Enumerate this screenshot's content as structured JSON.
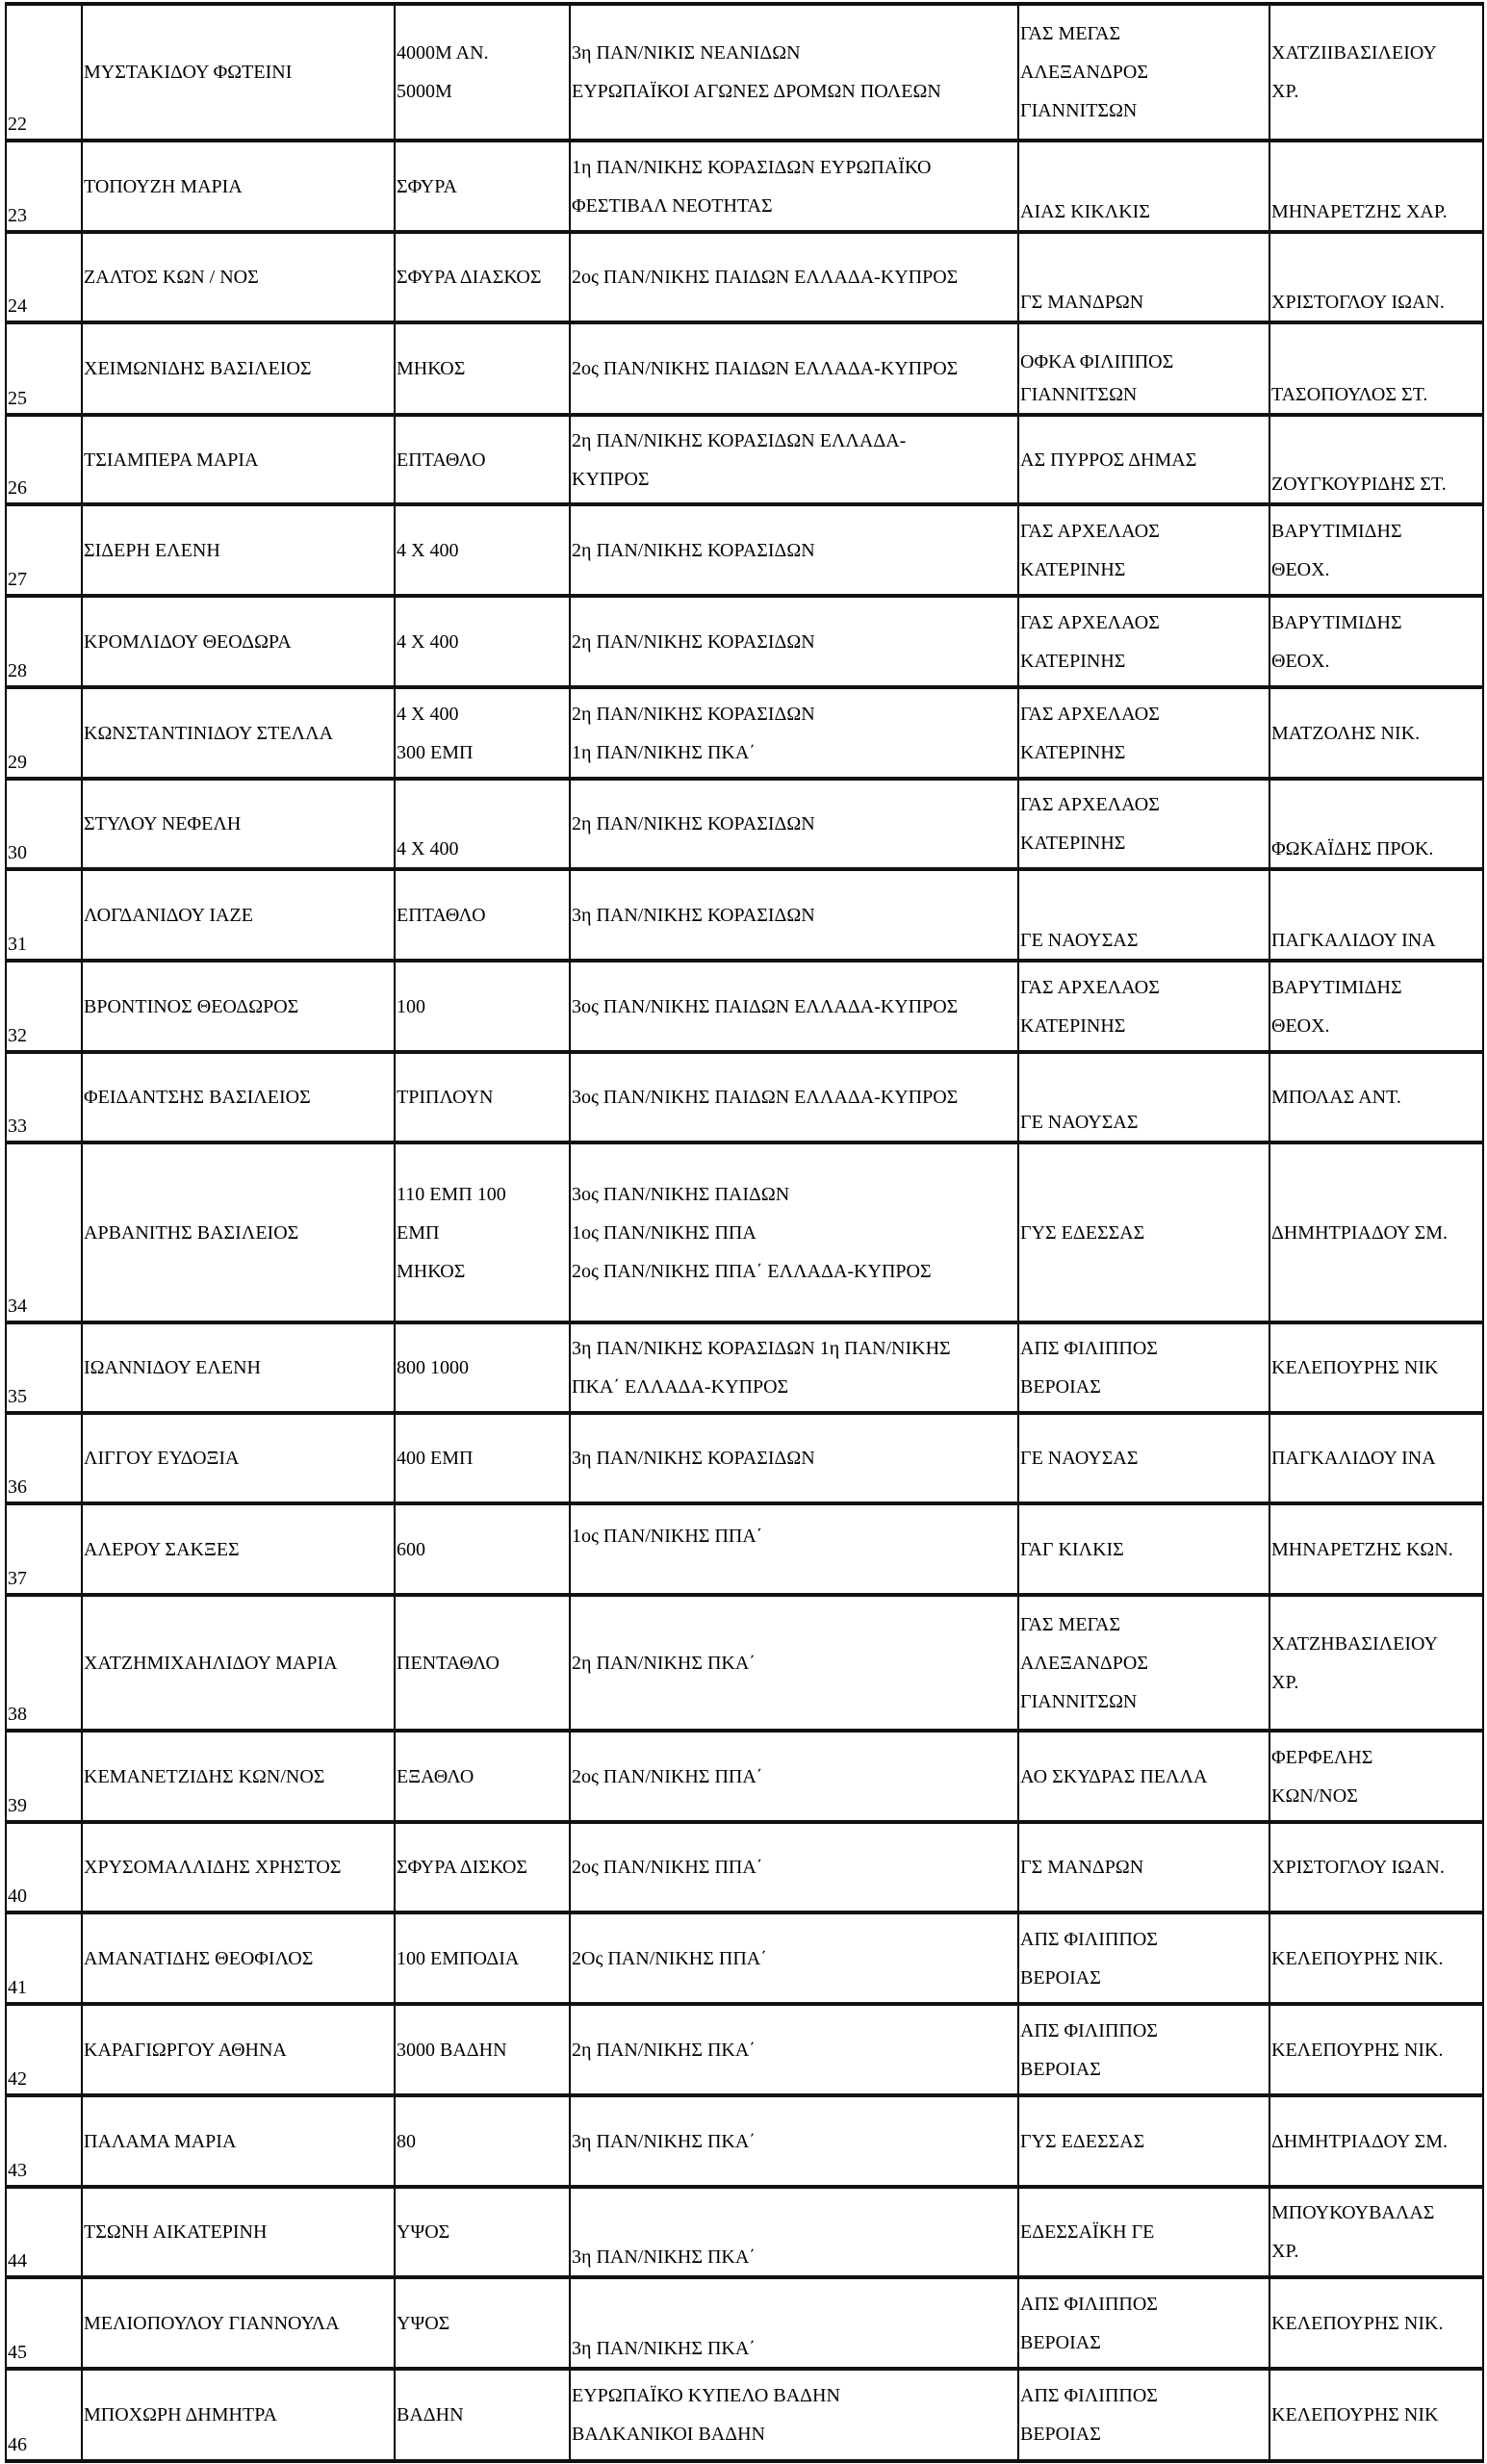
{
  "rows": [
    {
      "num": "22",
      "name": "ΜΥΣΤΑΚΙΔΟΥ  ΦΩΤΕΙΝΙ",
      "event": "4000Μ ΑΝ.\n5000Μ",
      "result": "3η ΠΑΝ/ΝΙΚΙΣ ΝΕΑΝΙΔΩΝ\nΕΥΡΩΠΑΪΚΟΙ ΑΓΩΝΕΣ ΔΡΟΜΩΝ ΠΟΛΕΩΝ",
      "club": "ΓΑΣ ΜΕΓΑΣ\nΑΛΕΞΑΝΔΡΟΣ\nΓΙΑΝΝΙΤΣΩΝ",
      "coach": "ΧΑΤΖΙΙΒΑΣΙΛΕΙΟΥ\nΧΡ."
    },
    {
      "num": "23",
      "name": "ΤΟΠΟΥΖΗ ΜΑΡΙΑ",
      "event": "ΣΦΥΡΑ",
      "result": "1η ΠΑΝ/ΝΙΚΗΣ ΚΟΡΑΣΙΔΩΝ ΕΥΡΩΠΑΪΚΟ\nΦΕΣΤΙΒΑΛ ΝΕΟΤΗΤΑΣ",
      "club": "ΑΙΑΣ ΚΙΚΛΚΙΣ",
      "coach": "ΜΗΝΑΡΕΤΖΗΣ ΧΑΡ."
    },
    {
      "num": "24",
      "name": "ΖΑΛΤΟΣ ΚΩΝ / ΝΟΣ",
      "event": "ΣΦΥΡΑ ΔΙΑΣΚΟΣ",
      "result": "2ος ΠΑΝ/ΝΙΚΗΣ ΠΑΙΔΩΝ ΕΛΛΑΔΑ-ΚΥΠΡΟΣ",
      "club": "ΓΣ  ΜΑΝΔΡΩΝ",
      "coach": "ΧΡΙΣΤΟΓΛΟΥ ΙΩΑΝ."
    },
    {
      "num": "25",
      "name": "ΧΕΙΜΩΝΙΔΗΣ ΒΑΣΙΛΕΙΟΣ",
      "event": "ΜΗΚΟΣ",
      "result": "2ος ΠΑΝ/ΝΙΚΗΣ ΠΑΙΔΩΝ ΕΛΛΑΔΑ-ΚΥΠΡΟΣ",
      "club": "ΟΦΚΑ ΦΙΛΙΠΠΟΣ\nΓΙΑΝΝΙΤΣΩΝ",
      "coach": "ΤΑΣΟΠΟΥΛΟΣ ΣΤ."
    },
    {
      "num": "26",
      "name": "ΤΣΙΑΜΠΕΡΑ ΜΑΡΙΑ",
      "event": "ΕΠΤΑΘΛΟ",
      "result": "2η  ΠΑΝ/ΝΙΚΗΣ ΚΟΡΑΣΙΔΩΝ ΕΛΛΑΔΑ-\nΚΥΠΡΟΣ",
      "club": "ΑΣ ΠΥΡΡΟΣ ΔΗΜΑΣ",
      "coach": "ΖΟΥΓΚΟΥΡΙΔΗΣ ΣΤ."
    },
    {
      "num": "27",
      "name": "ΣΙΔΕΡΗ ΕΛΕΝΗ",
      "event": "4 Χ 400",
      "result": "2η  ΠΑΝ/ΝΙΚΗΣ ΚΟΡΑΣΙΔΩΝ",
      "club": "ΓΑΣ ΑΡΧΕΛΑΟΣ\nΚΑΤΕΡΙΝΗΣ",
      "coach": " ΒΑΡΥΤΙΜΙΔΗΣ\nΘΕΟΧ."
    },
    {
      "num": "28",
      "name": "ΚΡΟΜΛΙΔΟΥ  ΘΕΟΔΩΡΑ",
      "event": "4 Χ 400",
      "result": "2η  ΠΑΝ/ΝΙΚΗΣ ΚΟΡΑΣΙΔΩΝ",
      "club": "ΓΑΣ ΑΡΧΕΛΑΟΣ\nΚΑΤΕΡΙΝΗΣ",
      "coach": " ΒΑΡΥΤΙΜΙΔΗΣ\nΘΕΟΧ."
    },
    {
      "num": "29",
      "name": "ΚΩΝΣΤΑΝΤΙΝΙΔΟΥ ΣΤΕΛΛΑ",
      "event": "4 Χ 400\n300 ΕΜΠ",
      "result": "2η  ΠΑΝ/ΝΙΚΗΣ ΚΟΡΑΣΙΔΩΝ\n1η  ΠΑΝ/ΝΙΚΗΣ ΠΚΑ΄",
      "club": "ΓΑΣ ΑΡΧΕΛΑΟΣ\nΚΑΤΕΡΙΝΗΣ",
      "coach": " ΜΑΤΖΟΛΗΣ ΝΙΚ."
    },
    {
      "num": "30",
      "name": "ΣΤΥΛΟΥ ΝΕΦΕΛΗ",
      "event": "4 Χ 400",
      "result": "2η  ΠΑΝ/ΝΙΚΗΣ ΚΟΡΑΣΙΔΩΝ",
      "club": "ΓΑΣ ΑΡΧΕΛΑΟΣ\nΚΑΤΕΡΙΝΗΣ",
      "coach": "ΦΩΚΑΪΔΗΣ ΠΡΟΚ."
    },
    {
      "num": "31",
      "name": "ΛΟΓΔΑΝΙΔΟΥ  ΙΑΖΕ",
      "event": "ΕΠΤΑΘΛΟ",
      "result": "3η ΠΑΝ/ΝΙΚΗΣ ΚΟΡΑΣΙΔΩΝ",
      "club": "ΓΕ ΝΑΟΥΣΑΣ",
      "coach": "ΠΑΓΚΑΛΙΔΟΥ ΙΝΑ"
    },
    {
      "num": "32",
      "name": "ΒΡΟΝΤΙΝΟΣ ΘΕΟΔΩΡΟΣ",
      "event": "100",
      "result": "3ος ΠΑΝ/ΝΙΚΗΣ ΠΑΙΔΩΝ ΕΛΛΑΔΑ-ΚΥΠΡΟΣ",
      "club": "ΓΑΣ ΑΡΧΕΛΑΟΣ\nΚΑΤΕΡΙΝΗΣ",
      "coach": " ΒΑΡΥΤΙΜΙΔΗΣ\nΘΕΟΧ."
    },
    {
      "num": "33",
      "name": "ΦΕΙΔΑΝΤΣΗΣ ΒΑΣΙΛΕΙΟΣ",
      "event": "ΤΡΙΠΛΟΥΝ",
      "result": "3ος ΠΑΝ/ΝΙΚΗΣ ΠΑΙΔΩΝ ΕΛΛΑΔΑ-ΚΥΠΡΟΣ",
      "club": "ΓΕ ΝΑΟΥΣΑΣ",
      "coach": " ΜΠΟΛΑΣ ΑΝΤ."
    },
    {
      "num": "34",
      "name": "ΑΡΒΑΝΙΤΗΣ ΒΑΣΙΛΕΙΟΣ",
      "event": "110 ΕΜΠ 100\nΕΜΠ\nΜΗΚΟΣ",
      "result": "3ος ΠΑΝ/ΝΙΚΗΣ ΠΑΙΔΩΝ\n1ος ΠΑΝ/ΝΙΚΗΣ ΠΠΑ\n2ος ΠΑΝ/ΝΙΚΗΣ ΠΠΑ΄ ΕΛΛΑΔΑ-ΚΥΠΡΟΣ",
      "club": " ΓΥΣ ΕΔΕΣΣΑΣ",
      "coach": "ΔΗΜΗΤΡΙΑΔΟΥ ΣΜ."
    },
    {
      "num": "35",
      "name": "ΙΩΑΝΝΙΔΟΥ ΕΛΕΝΗ",
      "event": "800     1000",
      "result": "3η ΠΑΝ/ΝΙΚΗΣ ΚΟΡΑΣΙΔΩΝ 1η  ΠΑΝ/ΝΙΚΗΣ\nΠΚΑ΄ ΕΛΛΑΔΑ-ΚΥΠΡΟΣ",
      "club": "ΑΠΣ ΦΙΛΙΠΠΟΣ\nΒΕΡΟΙΑΣ",
      "coach": " ΚΕΛΕΠΟΥΡΗΣ ΝΙΚ"
    },
    {
      "num": "36",
      "name": "ΛΙΓΓΟΥ ΕΥΔΟΞΙΑ",
      "event": "400 ΕΜΠ",
      "result": "3η ΠΑΝ/ΝΙΚΗΣ ΚΟΡΑΣΙΔΩΝ",
      "club": " ΓΕ ΝΑΟΥΣΑΣ",
      "coach": " ΠΑΓΚΑΛΙΔΟΥ ΙΝΑ"
    },
    {
      "num": "37",
      "name": "ΑΛΕΡΟΥ ΣΑΚΞΕΣ",
      "event": "600",
      "result": " 1ος ΠΑΝ/ΝΙΚΗΣ ΠΠΑ΄",
      "club": " ΓΑΓ ΚΙΛΚΙΣ",
      "coach": " ΜΗΝΑΡΕΤΖΗΣ ΚΩΝ."
    },
    {
      "num": "38",
      "name": "ΧΑΤΖΗΜΙΧΑΗΛΙΔΟΥ ΜΑΡΙΑ",
      "event": "ΠΕΝΤΑΘΛΟ",
      "result": "2η ΠΑΝ/ΝΙΚΗΣ ΠΚΑ΄",
      "club": "ΓΑΣ ΜΕΓΑΣ\nΑΛΕΞΑΝΔΡΟΣ\nΓΙΑΝΝΙΤΣΩΝ",
      "coach": " ΧΑΤΖΗΒΑΣΙΛΕΙΟΥ\nΧΡ."
    },
    {
      "num": "39",
      "name": "ΚΕΜΑΝΕΤΖΙΔΗΣ ΚΩΝ/ΝΟΣ",
      "event": "ΕΞΑΘΛΟ",
      "result": "2ος ΠΑΝ/ΝΙΚΗΣ ΠΠΑ΄",
      "club": "ΑΟ ΣΚΥΔΡΑΣ ΠΕΛΛΑ",
      "coach": " ΦΕΡΦΕΛΗΣ\nΚΩΝ/ΝΟΣ"
    },
    {
      "num": "40",
      "name": "ΧΡΥΣΟΜΑΛΛΙΔΗΣ ΧΡΗΣΤΟΣ",
      "event": "ΣΦΥΡΑ ΔΙΣΚΟΣ",
      "result": "2ος ΠΑΝ/ΝΙΚΗΣ ΠΠΑ΄",
      "club": " ΓΣ  ΜΑΝΔΡΩΝ",
      "coach": " ΧΡΙΣΤΟΓΛΟΥ ΙΩΑΝ."
    },
    {
      "num": "41",
      "name": "ΑΜΑΝΑΤΙΔΗΣ ΘΕΟΦΙΛΟΣ",
      "event": "100 ΕΜΠΟΔΙΑ",
      "result": "2Ος  ΠΑΝ/ΝΙΚΗΣ ΠΠΑ΄",
      "club": "ΑΠΣ ΦΙΛΙΠΠΟΣ\nΒΕΡΟΙΑΣ",
      "coach": " ΚΕΛΕΠΟΥΡΗΣ ΝΙΚ."
    },
    {
      "num": "42",
      "name": "ΚΑΡΑΓΙΩΡΓΟΥ ΑΘΗΝΑ",
      "event": "3000 ΒΑΔΗΝ",
      "result": "2η ΠΑΝ/ΝΙΚΗΣ ΠΚΑ΄",
      "club": "ΑΠΣ ΦΙΛΙΠΠΟΣ\nΒΕΡΟΙΑΣ",
      "coach": " ΚΕΛΕΠΟΥΡΗΣ ΝΙΚ."
    },
    {
      "num": "43",
      "name": "ΠΑΛΑΜΑ ΜΑΡΙΑ",
      "event": "80",
      "result": "3η ΠΑΝ/ΝΙΚΗΣ ΠΚΑ΄",
      "club": " ΓΥΣ ΕΔΕΣΣΑΣ",
      "coach": " ΔΗΜΗΤΡΙΑΔΟΥ ΣΜ."
    },
    {
      "num": "44",
      "name": "ΤΣΩΝΗ ΑΙΚΑΤΕΡΙΝΗ",
      "event": "ΥΨΟΣ",
      "result": "3η ΠΑΝ/ΝΙΚΗΣ ΠΚΑ΄",
      "club": " ΕΔΕΣΣΑΪΚΗ ΓΕ",
      "coach": " ΜΠΟΥΚΟΥΒΑΛΑΣ\nΧΡ."
    },
    {
      "num": "45",
      "name": "ΜΕΛΙΟΠΟΥΛΟΥ ΓΙΑΝΝΟΥΛΑ",
      "event": "ΥΨΟΣ",
      "result": "3η ΠΑΝ/ΝΙΚΗΣ ΠΚΑ΄",
      "club": "ΑΠΣ  ΦΙΛΙΠΠΟΣ\nΒΕΡΟΙΑΣ",
      "coach": " ΚΕΛΕΠΟΥΡΗΣ ΝΙΚ."
    },
    {
      "num": "46",
      "name": "ΜΠΟΧΩΡΗ ΔΗΜΗΤΡΑ",
      "event": "ΒΑΔΗΝ",
      "result": "ΕΥΡΩΠΑΪΚΟ  ΚΥΠΕΛΟ ΒΑΔΗΝ\nΒΑΛΚΑΝΙΚΟΙ ΒΑΔΗΝ",
      "club": "ΑΠΣ ΦΙΛΙΠΠΟΣ\nΒΕΡΟΙΑΣ",
      "coach": " ΚΕΛΕΠΟΥΡΗΣ ΝΙΚ"
    }
  ]
}
